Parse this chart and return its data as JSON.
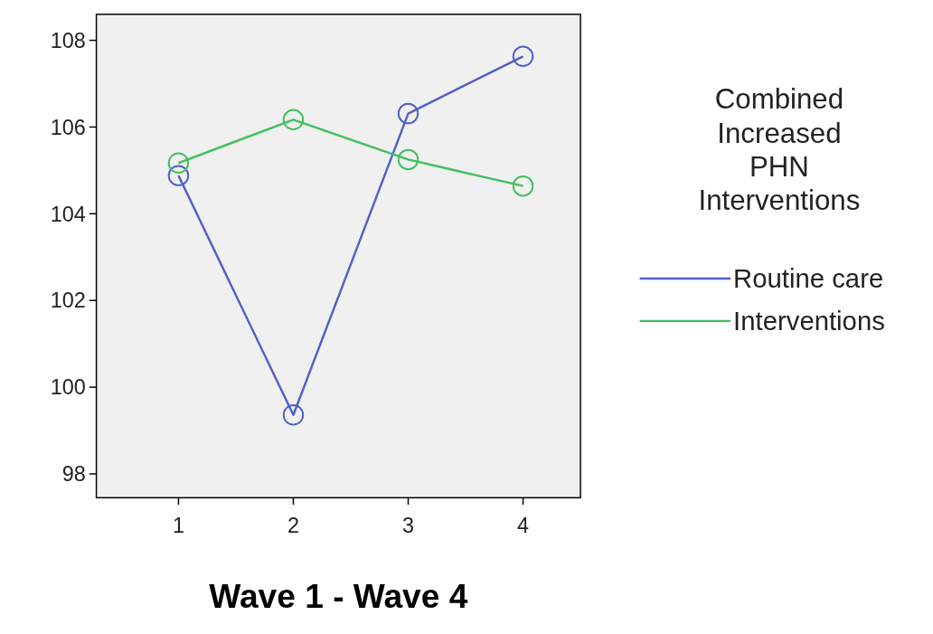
{
  "chart_data": {
    "type": "line",
    "xlabel": "Wave 1 - Wave 4",
    "legend_title": "Combined Increased PHN Interventions",
    "categories": [
      "1",
      "2",
      "3",
      "4"
    ],
    "series": [
      {
        "name": "Routine care",
        "color": "#5060c8",
        "values": [
          104.88,
          99.36,
          106.31,
          107.63
        ]
      },
      {
        "name": "Interventions",
        "color": "#40c060",
        "values": [
          105.17,
          106.17,
          105.25,
          104.64
        ]
      }
    ],
    "ylim": [
      97.45,
      108.6
    ],
    "yticks": [
      98,
      100,
      102,
      104,
      106,
      108
    ],
    "grid": false,
    "legend": "right",
    "marker": "circle",
    "line_style": "solid"
  }
}
